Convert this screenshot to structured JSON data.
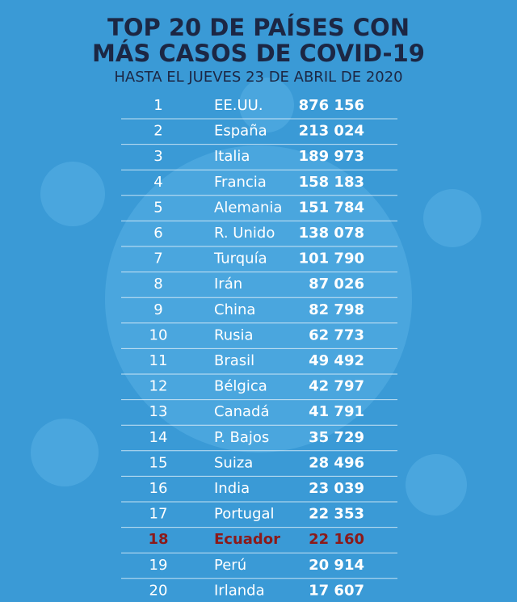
{
  "header": {
    "title_lines": [
      "TOP 20 DE PAÍSES CON",
      "MÁS CASOS DE COVID-19"
    ],
    "subtitle": "HASTA EL JUEVES 23 DE ABRIL DE 2020"
  },
  "table": {
    "rows": [
      {
        "rank": 1,
        "country": "EE.UU.",
        "cases": "876 156",
        "color": "#ffffff"
      },
      {
        "rank": 2,
        "country": "España",
        "cases": "213 024",
        "color": "#ffffff"
      },
      {
        "rank": 3,
        "country": "Italia",
        "cases": "189 973",
        "color": "#ffffff"
      },
      {
        "rank": 4,
        "country": "Francia",
        "cases": "158 183",
        "color": "#ffffff"
      },
      {
        "rank": 5,
        "country": "Alemania",
        "cases": "151 784",
        "color": "#ffffff"
      },
      {
        "rank": 6,
        "country": "R. Unido",
        "cases": "138 078",
        "color": "#ffffff"
      },
      {
        "rank": 7,
        "country": "Turquía",
        "cases": "101 790",
        "color": "#ffffff"
      },
      {
        "rank": 8,
        "country": "Irán",
        "cases": "87 026",
        "color": "#ffffff"
      },
      {
        "rank": 9,
        "country": "China",
        "cases": "82 798",
        "color": "#ffffff"
      },
      {
        "rank": 10,
        "country": "Rusia",
        "cases": "62 773",
        "color": "#ffffff"
      },
      {
        "rank": 11,
        "country": "Brasil",
        "cases": "49 492",
        "color": "#ffffff"
      },
      {
        "rank": 12,
        "country": "Bélgica",
        "cases": "42 797",
        "color": "#ffffff"
      },
      {
        "rank": 13,
        "country": "Canadá",
        "cases": "41 791",
        "color": "#ffffff"
      },
      {
        "rank": 14,
        "country": "P. Bajos",
        "cases": "35 729",
        "color": "#ffffff"
      },
      {
        "rank": 15,
        "country": "Suiza",
        "cases": "28 496",
        "color": "#ffffff"
      },
      {
        "rank": 16,
        "country": "India",
        "cases": "23 039",
        "color": "#ffffff"
      },
      {
        "rank": 17,
        "country": "Portugal",
        "cases": "22 353",
        "color": "#ffffff"
      },
      {
        "rank": 18,
        "country": "Ecuador",
        "cases": "22 160",
        "color": "#8b1a1a"
      },
      {
        "rank": 19,
        "country": "Perú",
        "cases": "20 914",
        "color": "#ffffff"
      },
      {
        "rank": 20,
        "country": "Irlanda",
        "cases": "17 607",
        "color": "#ffffff"
      }
    ]
  }
}
